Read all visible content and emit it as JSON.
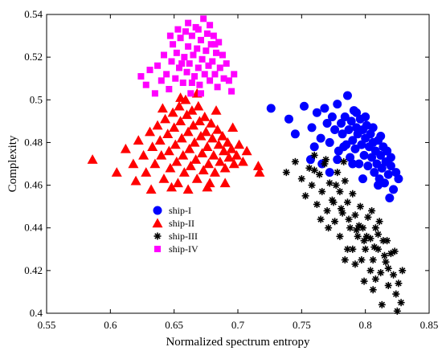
{
  "chart_data": {
    "type": "scatter",
    "xlabel": "Normalized spectrum entropy",
    "ylabel": "Complexity",
    "xlim": [
      0.55,
      0.85
    ],
    "ylim": [
      0.4,
      0.54
    ],
    "xticks": [
      "0.55",
      "0.6",
      "0.65",
      "0.7",
      "0.75",
      "0.8",
      "0.85"
    ],
    "yticks": [
      "0.4",
      "0.42",
      "0.44",
      "0.46",
      "0.48",
      "0.5",
      "0.52",
      "0.54"
    ],
    "grid": false,
    "legend_position": "center-left",
    "series": [
      {
        "name": "ship-I",
        "marker": "circle",
        "color": "#0000ff",
        "points": [
          [
            0.726,
            0.496
          ],
          [
            0.74,
            0.491
          ],
          [
            0.752,
            0.497
          ],
          [
            0.758,
            0.487
          ],
          [
            0.762,
            0.494
          ],
          [
            0.765,
            0.482
          ],
          [
            0.768,
            0.496
          ],
          [
            0.77,
            0.489
          ],
          [
            0.772,
            0.48
          ],
          [
            0.774,
            0.492
          ],
          [
            0.776,
            0.486
          ],
          [
            0.778,
            0.498
          ],
          [
            0.779,
            0.476
          ],
          [
            0.781,
            0.489
          ],
          [
            0.782,
            0.484
          ],
          [
            0.784,
            0.492
          ],
          [
            0.785,
            0.479
          ],
          [
            0.786,
            0.502
          ],
          [
            0.787,
            0.486
          ],
          [
            0.788,
            0.473
          ],
          [
            0.789,
            0.49
          ],
          [
            0.79,
            0.481
          ],
          [
            0.791,
            0.495
          ],
          [
            0.792,
            0.477
          ],
          [
            0.793,
            0.487
          ],
          [
            0.794,
            0.484
          ],
          [
            0.795,
            0.47
          ],
          [
            0.796,
            0.491
          ],
          [
            0.797,
            0.479
          ],
          [
            0.798,
            0.486
          ],
          [
            0.799,
            0.474
          ],
          [
            0.8,
            0.482
          ],
          [
            0.801,
            0.488
          ],
          [
            0.802,
            0.469
          ],
          [
            0.803,
            0.478
          ],
          [
            0.804,
            0.484
          ],
          [
            0.805,
            0.473
          ],
          [
            0.806,
            0.48
          ],
          [
            0.807,
            0.466
          ],
          [
            0.808,
            0.476
          ],
          [
            0.809,
            0.47
          ],
          [
            0.81,
            0.481
          ],
          [
            0.811,
            0.463
          ],
          [
            0.812,
            0.474
          ],
          [
            0.813,
            0.468
          ],
          [
            0.814,
            0.478
          ],
          [
            0.815,
            0.461
          ],
          [
            0.816,
            0.471
          ],
          [
            0.818,
            0.465
          ],
          [
            0.82,
            0.469
          ],
          [
            0.822,
            0.458
          ],
          [
            0.824,
            0.466
          ],
          [
            0.826,
            0.463
          ],
          [
            0.76,
            0.478
          ],
          [
            0.766,
            0.47
          ],
          [
            0.772,
            0.466
          ],
          [
            0.778,
            0.472
          ],
          [
            0.783,
            0.478
          ],
          [
            0.793,
            0.494
          ],
          [
            0.8,
            0.492
          ],
          [
            0.806,
            0.487
          ],
          [
            0.812,
            0.483
          ],
          [
            0.817,
            0.476
          ],
          [
            0.82,
            0.473
          ],
          [
            0.798,
            0.463
          ],
          [
            0.81,
            0.46
          ],
          [
            0.819,
            0.454
          ],
          [
            0.745,
            0.484
          ],
          [
            0.757,
            0.472
          ],
          [
            0.79,
            0.47
          ]
        ]
      },
      {
        "name": "ship-II",
        "marker": "triangle",
        "color": "#ff0000",
        "points": [
          [
            0.586,
            0.472
          ],
          [
            0.605,
            0.466
          ],
          [
            0.612,
            0.477
          ],
          [
            0.618,
            0.47
          ],
          [
            0.622,
            0.481
          ],
          [
            0.626,
            0.474
          ],
          [
            0.628,
            0.466
          ],
          [
            0.631,
            0.485
          ],
          [
            0.633,
            0.478
          ],
          [
            0.635,
            0.47
          ],
          [
            0.637,
            0.488
          ],
          [
            0.639,
            0.481
          ],
          [
            0.64,
            0.474
          ],
          [
            0.642,
            0.463
          ],
          [
            0.643,
            0.491
          ],
          [
            0.645,
            0.484
          ],
          [
            0.646,
            0.476
          ],
          [
            0.647,
            0.468
          ],
          [
            0.649,
            0.494
          ],
          [
            0.65,
            0.487
          ],
          [
            0.651,
            0.479
          ],
          [
            0.652,
            0.471
          ],
          [
            0.653,
            0.461
          ],
          [
            0.654,
            0.497
          ],
          [
            0.655,
            0.49
          ],
          [
            0.656,
            0.482
          ],
          [
            0.657,
            0.474
          ],
          [
            0.658,
            0.466
          ],
          [
            0.659,
            0.5
          ],
          [
            0.66,
            0.493
          ],
          [
            0.661,
            0.485
          ],
          [
            0.662,
            0.477
          ],
          [
            0.663,
            0.469
          ],
          [
            0.664,
            0.495
          ],
          [
            0.665,
            0.488
          ],
          [
            0.666,
            0.48
          ],
          [
            0.667,
            0.472
          ],
          [
            0.668,
            0.463
          ],
          [
            0.669,
            0.497
          ],
          [
            0.67,
            0.49
          ],
          [
            0.671,
            0.483
          ],
          [
            0.672,
            0.475
          ],
          [
            0.673,
            0.467
          ],
          [
            0.674,
            0.492
          ],
          [
            0.675,
            0.485
          ],
          [
            0.676,
            0.478
          ],
          [
            0.677,
            0.47
          ],
          [
            0.678,
            0.461
          ],
          [
            0.679,
            0.489
          ],
          [
            0.68,
            0.482
          ],
          [
            0.681,
            0.474
          ],
          [
            0.682,
            0.466
          ],
          [
            0.684,
            0.486
          ],
          [
            0.685,
            0.479
          ],
          [
            0.686,
            0.471
          ],
          [
            0.688,
            0.483
          ],
          [
            0.689,
            0.476
          ],
          [
            0.69,
            0.468
          ],
          [
            0.692,
            0.48
          ],
          [
            0.693,
            0.473
          ],
          [
            0.695,
            0.477
          ],
          [
            0.697,
            0.47
          ],
          [
            0.699,
            0.474
          ],
          [
            0.701,
            0.479
          ],
          [
            0.704,
            0.471
          ],
          [
            0.707,
            0.476
          ],
          [
            0.716,
            0.469
          ],
          [
            0.717,
            0.466
          ],
          [
            0.62,
            0.462
          ],
          [
            0.632,
            0.458
          ],
          [
            0.648,
            0.459
          ],
          [
            0.661,
            0.458
          ],
          [
            0.676,
            0.459
          ],
          [
            0.69,
            0.461
          ],
          [
            0.641,
            0.496
          ],
          [
            0.655,
            0.501
          ],
          [
            0.668,
            0.503
          ],
          [
            0.683,
            0.495
          ],
          [
            0.696,
            0.487
          ]
        ]
      },
      {
        "name": "ship-III",
        "marker": "asterisk",
        "color": "#000000",
        "points": [
          [
            0.738,
            0.466
          ],
          [
            0.745,
            0.471
          ],
          [
            0.75,
            0.463
          ],
          [
            0.753,
            0.455
          ],
          [
            0.756,
            0.468
          ],
          [
            0.758,
            0.46
          ],
          [
            0.76,
            0.474
          ],
          [
            0.762,
            0.451
          ],
          [
            0.764,
            0.465
          ],
          [
            0.766,
            0.457
          ],
          [
            0.768,
            0.47
          ],
          [
            0.77,
            0.448
          ],
          [
            0.772,
            0.461
          ],
          [
            0.774,
            0.453
          ],
          [
            0.776,
            0.443
          ],
          [
            0.778,
            0.466
          ],
          [
            0.78,
            0.457
          ],
          [
            0.782,
            0.447
          ],
          [
            0.784,
            0.462
          ],
          [
            0.786,
            0.452
          ],
          [
            0.788,
            0.44
          ],
          [
            0.79,
            0.456
          ],
          [
            0.792,
            0.446
          ],
          [
            0.794,
            0.436
          ],
          [
            0.796,
            0.45
          ],
          [
            0.798,
            0.44
          ],
          [
            0.8,
            0.43
          ],
          [
            0.802,
            0.445
          ],
          [
            0.804,
            0.435
          ],
          [
            0.806,
            0.425
          ],
          [
            0.808,
            0.44
          ],
          [
            0.81,
            0.43
          ],
          [
            0.812,
            0.419
          ],
          [
            0.814,
            0.434
          ],
          [
            0.816,
            0.424
          ],
          [
            0.818,
            0.413
          ],
          [
            0.82,
            0.428
          ],
          [
            0.822,
            0.418
          ],
          [
            0.824,
            0.409
          ],
          [
            0.826,
            0.414
          ],
          [
            0.828,
            0.405
          ],
          [
            0.79,
            0.43
          ],
          [
            0.797,
            0.425
          ],
          [
            0.804,
            0.42
          ],
          [
            0.81,
            0.437
          ],
          [
            0.815,
            0.427
          ],
          [
            0.78,
            0.436
          ],
          [
            0.786,
            0.43
          ],
          [
            0.792,
            0.423
          ],
          [
            0.799,
            0.415
          ],
          [
            0.806,
            0.411
          ],
          [
            0.813,
            0.404
          ],
          [
            0.795,
            0.441
          ],
          [
            0.801,
            0.436
          ],
          [
            0.807,
            0.431
          ],
          [
            0.775,
            0.452
          ],
          [
            0.781,
            0.449
          ],
          [
            0.787,
            0.444
          ],
          [
            0.793,
            0.439
          ],
          [
            0.799,
            0.434
          ],
          [
            0.765,
            0.444
          ],
          [
            0.771,
            0.44
          ],
          [
            0.805,
            0.448
          ],
          [
            0.811,
            0.443
          ],
          [
            0.817,
            0.434
          ],
          [
            0.823,
            0.429
          ],
          [
            0.818,
            0.421
          ],
          [
            0.829,
            0.42
          ],
          [
            0.808,
            0.416
          ],
          [
            0.784,
            0.425
          ],
          [
            0.76,
            0.467
          ],
          [
            0.769,
            0.472
          ],
          [
            0.777,
            0.46
          ],
          [
            0.783,
            0.471
          ],
          [
            0.825,
            0.401
          ]
        ]
      },
      {
        "name": "ship-IV",
        "marker": "square",
        "color": "#ff00ff",
        "points": [
          [
            0.624,
            0.511
          ],
          [
            0.628,
            0.507
          ],
          [
            0.631,
            0.514
          ],
          [
            0.635,
            0.503
          ],
          [
            0.637,
            0.516
          ],
          [
            0.64,
            0.509
          ],
          [
            0.642,
            0.521
          ],
          [
            0.644,
            0.512
          ],
          [
            0.646,
            0.505
          ],
          [
            0.648,
            0.518
          ],
          [
            0.649,
            0.526
          ],
          [
            0.651,
            0.51
          ],
          [
            0.652,
            0.522
          ],
          [
            0.654,
            0.515
          ],
          [
            0.655,
            0.529
          ],
          [
            0.657,
            0.508
          ],
          [
            0.658,
            0.52
          ],
          [
            0.659,
            0.532
          ],
          [
            0.66,
            0.513
          ],
          [
            0.661,
            0.525
          ],
          [
            0.662,
            0.517
          ],
          [
            0.663,
            0.503
          ],
          [
            0.664,
            0.53
          ],
          [
            0.665,
            0.521
          ],
          [
            0.666,
            0.511
          ],
          [
            0.667,
            0.534
          ],
          [
            0.668,
            0.524
          ],
          [
            0.669,
            0.515
          ],
          [
            0.67,
            0.507
          ],
          [
            0.671,
            0.528
          ],
          [
            0.672,
            0.519
          ],
          [
            0.673,
            0.538
          ],
          [
            0.674,
            0.512
          ],
          [
            0.675,
            0.523
          ],
          [
            0.676,
            0.531
          ],
          [
            0.677,
            0.516
          ],
          [
            0.678,
            0.509
          ],
          [
            0.679,
            0.526
          ],
          [
            0.68,
            0.518
          ],
          [
            0.681,
            0.53
          ],
          [
            0.682,
            0.512
          ],
          [
            0.683,
            0.522
          ],
          [
            0.684,
            0.506
          ],
          [
            0.685,
            0.527
          ],
          [
            0.686,
            0.515
          ],
          [
            0.688,
            0.521
          ],
          [
            0.689,
            0.51
          ],
          [
            0.691,
            0.517
          ],
          [
            0.693,
            0.509
          ],
          [
            0.695,
            0.504
          ],
          [
            0.697,
            0.512
          ],
          [
            0.647,
            0.53
          ],
          [
            0.653,
            0.533
          ],
          [
            0.661,
            0.536
          ],
          [
            0.669,
            0.533
          ],
          [
            0.678,
            0.535
          ],
          [
            0.664,
            0.508
          ],
          [
            0.671,
            0.503
          ],
          [
            0.656,
            0.517
          ],
          [
            0.682,
            0.526
          ]
        ]
      }
    ]
  }
}
